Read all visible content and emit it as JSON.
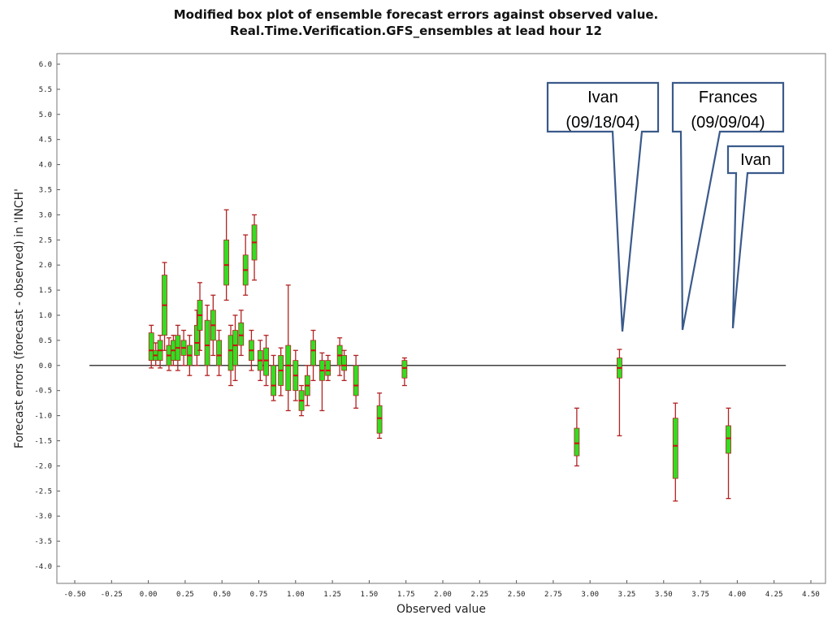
{
  "chart_data": {
    "type": "box",
    "title": "Modified box plot of ensemble forecast errors against observed value.",
    "subtitle": "Real.Time.Verification.GFS_ensembles at lead hour 12",
    "xlabel": "Observed value",
    "ylabel": "Forecast errors (forecast - observed) in 'INCH'",
    "xlim": [
      -0.5,
      4.5
    ],
    "ylim": [
      -4.0,
      6.0
    ],
    "xticks": [
      "-0.50",
      "-0.25",
      "0.00",
      "0.25",
      "0.50",
      "0.75",
      "1.00",
      "1.25",
      "1.50",
      "1.75",
      "2.00",
      "2.25",
      "2.50",
      "2.75",
      "3.00",
      "3.25",
      "3.50",
      "3.75",
      "4.00",
      "4.25",
      "4.50"
    ],
    "yticks": [
      "6.0",
      "5.5",
      "5.0",
      "4.5",
      "4.0",
      "3.5",
      "3.0",
      "2.5",
      "2.0",
      "1.5",
      "1.0",
      "0.5",
      "0.0",
      "-0.5",
      "-1.0",
      "-1.5",
      "-2.0",
      "-2.5",
      "-3.0",
      "-3.5",
      "-4.0"
    ],
    "reference_line_y": 0.0,
    "colors": {
      "whisker": "#b22222",
      "box": "#33dd22",
      "median": "#cc1111",
      "reference": "#000000",
      "callout": "#3a5a8a"
    },
    "boxes": [
      {
        "x": 0.02,
        "min": -0.05,
        "q1": 0.1,
        "med": 0.3,
        "q3": 0.65,
        "max": 0.8
      },
      {
        "x": 0.05,
        "min": 0.0,
        "q1": 0.1,
        "med": 0.2,
        "q3": 0.3,
        "max": 0.45
      },
      {
        "x": 0.08,
        "min": -0.05,
        "q1": 0.1,
        "med": 0.3,
        "q3": 0.5,
        "max": 0.6
      },
      {
        "x": 0.11,
        "min": 0.3,
        "q1": 0.6,
        "med": 1.2,
        "q3": 1.8,
        "max": 2.05
      },
      {
        "x": 0.14,
        "min": -0.1,
        "q1": 0.0,
        "med": 0.2,
        "q3": 0.4,
        "max": 0.55
      },
      {
        "x": 0.17,
        "min": 0.0,
        "q1": 0.1,
        "med": 0.3,
        "q3": 0.5,
        "max": 0.6
      },
      {
        "x": 0.2,
        "min": -0.1,
        "q1": 0.1,
        "med": 0.35,
        "q3": 0.6,
        "max": 0.8
      },
      {
        "x": 0.24,
        "min": 0.0,
        "q1": 0.2,
        "med": 0.35,
        "q3": 0.5,
        "max": 0.7
      },
      {
        "x": 0.28,
        "min": -0.2,
        "q1": 0.0,
        "med": 0.2,
        "q3": 0.4,
        "max": 0.6
      },
      {
        "x": 0.33,
        "min": 0.0,
        "q1": 0.2,
        "med": 0.45,
        "q3": 0.8,
        "max": 1.1
      },
      {
        "x": 0.35,
        "min": 0.3,
        "q1": 0.7,
        "med": 1.0,
        "q3": 1.3,
        "max": 1.65
      },
      {
        "x": 0.4,
        "min": -0.2,
        "q1": 0.0,
        "med": 0.4,
        "q3": 0.9,
        "max": 1.2
      },
      {
        "x": 0.44,
        "min": 0.2,
        "q1": 0.5,
        "med": 0.8,
        "q3": 1.1,
        "max": 1.4
      },
      {
        "x": 0.48,
        "min": -0.2,
        "q1": 0.0,
        "med": 0.2,
        "q3": 0.5,
        "max": 0.7
      },
      {
        "x": 0.53,
        "min": 1.3,
        "q1": 1.6,
        "med": 2.0,
        "q3": 2.5,
        "max": 3.1
      },
      {
        "x": 0.56,
        "min": -0.4,
        "q1": -0.1,
        "med": 0.3,
        "q3": 0.6,
        "max": 0.8
      },
      {
        "x": 0.59,
        "min": -0.3,
        "q1": 0.0,
        "med": 0.4,
        "q3": 0.7,
        "max": 1.0
      },
      {
        "x": 0.63,
        "min": 0.2,
        "q1": 0.4,
        "med": 0.6,
        "q3": 0.85,
        "max": 1.1
      },
      {
        "x": 0.66,
        "min": 1.4,
        "q1": 1.6,
        "med": 1.9,
        "q3": 2.2,
        "max": 2.6
      },
      {
        "x": 0.7,
        "min": -0.1,
        "q1": 0.1,
        "med": 0.3,
        "q3": 0.5,
        "max": 0.7
      },
      {
        "x": 0.72,
        "min": 1.7,
        "q1": 2.1,
        "med": 2.45,
        "q3": 2.8,
        "max": 3.0
      },
      {
        "x": 0.76,
        "min": -0.3,
        "q1": -0.1,
        "med": 0.1,
        "q3": 0.3,
        "max": 0.5
      },
      {
        "x": 0.8,
        "min": -0.4,
        "q1": -0.2,
        "med": 0.1,
        "q3": 0.35,
        "max": 0.6
      },
      {
        "x": 0.85,
        "min": -0.7,
        "q1": -0.6,
        "med": -0.4,
        "q3": 0.0,
        "max": 0.2
      },
      {
        "x": 0.9,
        "min": -0.6,
        "q1": -0.4,
        "med": -0.1,
        "q3": 0.2,
        "max": 0.35
      },
      {
        "x": 0.95,
        "min": -0.9,
        "q1": -0.5,
        "med": 0.0,
        "q3": 0.4,
        "max": 1.6
      },
      {
        "x": 1.0,
        "min": -0.7,
        "q1": -0.5,
        "med": -0.2,
        "q3": 0.1,
        "max": 0.3
      },
      {
        "x": 1.04,
        "min": -1.0,
        "q1": -0.9,
        "med": -0.7,
        "q3": -0.5,
        "max": -0.4
      },
      {
        "x": 1.08,
        "min": -0.8,
        "q1": -0.6,
        "med": -0.4,
        "q3": -0.2,
        "max": 0.0
      },
      {
        "x": 1.12,
        "min": -0.3,
        "q1": 0.0,
        "med": 0.3,
        "q3": 0.5,
        "max": 0.7
      },
      {
        "x": 1.18,
        "min": -0.9,
        "q1": -0.3,
        "med": -0.1,
        "q3": 0.1,
        "max": 0.25
      },
      {
        "x": 1.22,
        "min": -0.3,
        "q1": -0.2,
        "med": -0.1,
        "q3": 0.1,
        "max": 0.2
      },
      {
        "x": 1.3,
        "min": -0.2,
        "q1": 0.0,
        "med": 0.2,
        "q3": 0.4,
        "max": 0.55
      },
      {
        "x": 1.33,
        "min": -0.3,
        "q1": -0.1,
        "med": 0.0,
        "q3": 0.2,
        "max": 0.3
      },
      {
        "x": 1.41,
        "min": -0.85,
        "q1": -0.6,
        "med": -0.4,
        "q3": 0.0,
        "max": 0.2
      },
      {
        "x": 1.57,
        "min": -1.45,
        "q1": -1.35,
        "med": -1.05,
        "q3": -0.8,
        "max": -0.55
      },
      {
        "x": 1.74,
        "min": -0.4,
        "q1": -0.25,
        "med": -0.05,
        "q3": 0.1,
        "max": 0.15
      },
      {
        "x": 2.91,
        "min": -2.0,
        "q1": -1.8,
        "med": -1.55,
        "q3": -1.25,
        "max": -0.85
      },
      {
        "x": 3.2,
        "min": -1.4,
        "q1": -0.25,
        "med": -0.05,
        "q3": 0.15,
        "max": 0.32
      },
      {
        "x": 3.58,
        "min": -2.7,
        "q1": -2.25,
        "med": -1.6,
        "q3": -1.05,
        "max": -0.75
      },
      {
        "x": 3.94,
        "min": -2.65,
        "q1": -1.75,
        "med": -1.45,
        "q3": -1.2,
        "max": -0.85
      }
    ]
  },
  "callouts": [
    {
      "line1": "Ivan",
      "line2": "(09/18/04)"
    },
    {
      "line1": "Frances",
      "line2": "(09/09/04)"
    },
    {
      "line1": "Ivan",
      "line2": ""
    }
  ]
}
